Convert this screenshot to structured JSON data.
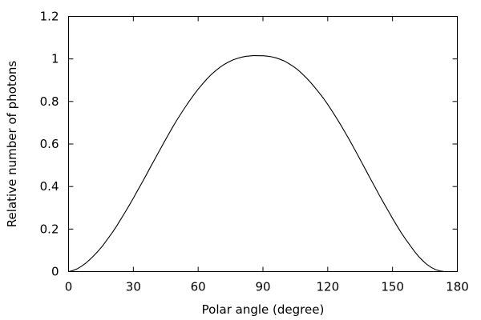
{
  "chart_data": {
    "type": "line",
    "title": "",
    "xlabel": "Polar angle (degree)",
    "ylabel": "Relative number of photons",
    "xlim": [
      0,
      180
    ],
    "ylim": [
      0,
      1.2
    ],
    "x_ticks": [
      0,
      30,
      60,
      90,
      120,
      150,
      180
    ],
    "y_ticks": [
      0,
      0.2,
      0.4,
      0.6,
      0.8,
      1,
      1.2
    ],
    "x_tick_labels": [
      "0",
      "30",
      "60",
      "90",
      "120",
      "150",
      "180"
    ],
    "y_tick_labels": [
      "0",
      "0.2",
      "0.4",
      "0.6",
      "0.8",
      "1",
      "1.2"
    ],
    "grid": false,
    "legend": "none",
    "line_color": "#000000",
    "series": [
      {
        "x": [
          0,
          2,
          4,
          6,
          8,
          10,
          12,
          14,
          16,
          18,
          20,
          22,
          24,
          26,
          28,
          30,
          32,
          34,
          36,
          38,
          40,
          42,
          44,
          46,
          48,
          50,
          52,
          54,
          56,
          58,
          60,
          62,
          64,
          66,
          68,
          70,
          72,
          74,
          76,
          78,
          80,
          82,
          84,
          86,
          88,
          90,
          92,
          94,
          96,
          98,
          100,
          102,
          104,
          106,
          108,
          110,
          112,
          114,
          116,
          118,
          120,
          122,
          124,
          126,
          128,
          130,
          132,
          134,
          136,
          138,
          140,
          142,
          144,
          146,
          148,
          150,
          152,
          154,
          156,
          158,
          160,
          162,
          164,
          166,
          168,
          170,
          172,
          174,
          176,
          178,
          180
        ],
        "y": [
          0.0,
          0.005,
          0.013,
          0.025,
          0.04,
          0.058,
          0.078,
          0.1,
          0.124,
          0.152,
          0.18,
          0.21,
          0.243,
          0.276,
          0.31,
          0.345,
          0.382,
          0.418,
          0.455,
          0.493,
          0.53,
          0.567,
          0.604,
          0.64,
          0.676,
          0.71,
          0.742,
          0.773,
          0.803,
          0.831,
          0.858,
          0.882,
          0.905,
          0.926,
          0.944,
          0.96,
          0.974,
          0.985,
          0.995,
          1.002,
          1.008,
          1.012,
          1.014,
          1.016,
          1.015,
          1.015,
          1.013,
          1.01,
          1.005,
          0.998,
          0.99,
          0.978,
          0.965,
          0.95,
          0.932,
          0.912,
          0.89,
          0.866,
          0.841,
          0.815,
          0.786,
          0.755,
          0.723,
          0.69,
          0.655,
          0.62,
          0.583,
          0.546,
          0.508,
          0.47,
          0.432,
          0.395,
          0.357,
          0.321,
          0.286,
          0.25,
          0.216,
          0.183,
          0.153,
          0.125,
          0.097,
          0.072,
          0.051,
          0.033,
          0.019,
          0.009,
          0.003,
          0.0,
          0.0,
          0.0,
          0.0
        ]
      }
    ]
  }
}
